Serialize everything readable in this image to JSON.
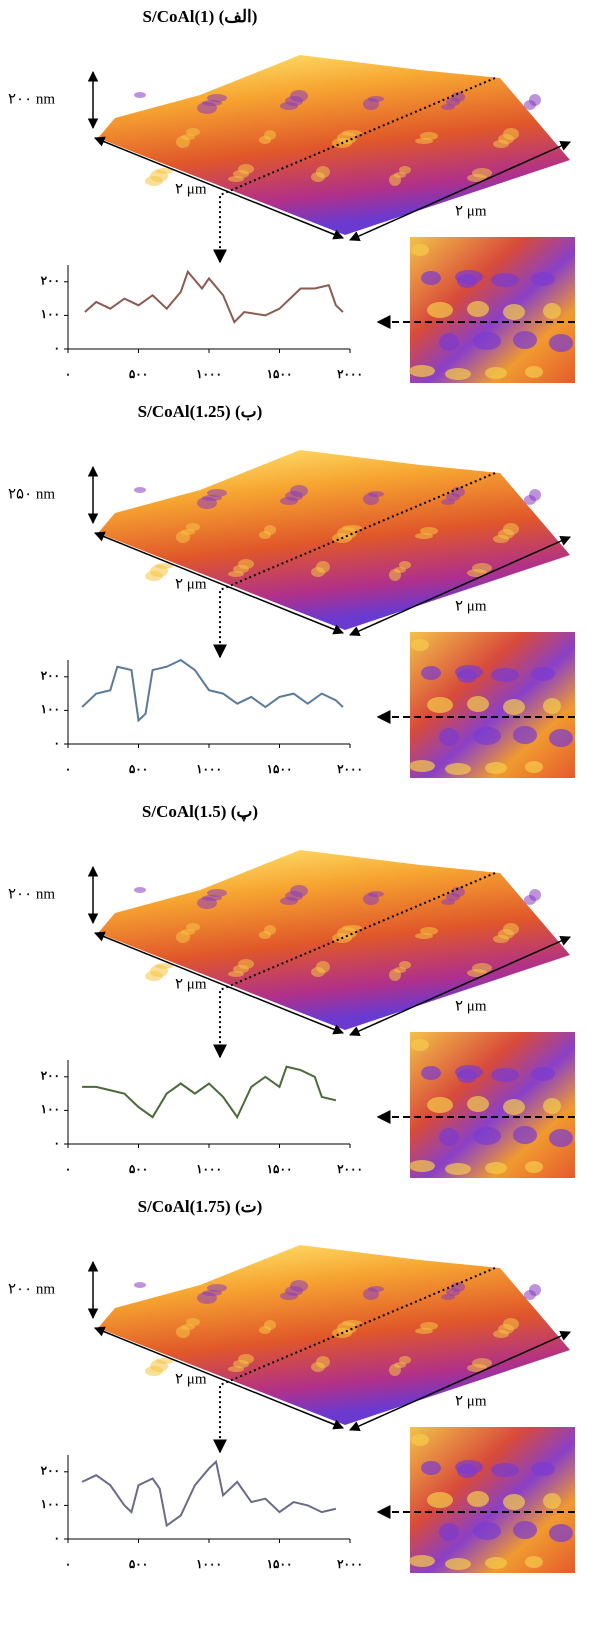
{
  "chart_data": [
    {
      "type": "line",
      "title": "S/CoAl(1) (الف)",
      "annotations": [
        "۲۰۰ nm",
        "۲ μm",
        "۲ μm"
      ],
      "color": "#8b5a50",
      "xlim": [
        0,
        2000
      ],
      "ylim": [
        0,
        250
      ],
      "xticks": [
        {
          "value": 0,
          "label": "۰"
        },
        {
          "value": 500,
          "label": "۵۰۰"
        },
        {
          "value": 1000,
          "label": "۱۰۰۰"
        },
        {
          "value": 1500,
          "label": "۱۵۰۰"
        },
        {
          "value": 2000,
          "label": "۲۰۰۰"
        }
      ],
      "yticks": [
        {
          "value": 0,
          "label": "۰"
        },
        {
          "value": 100,
          "label": "۱۰۰"
        },
        {
          "value": 200,
          "label": "۲۰۰"
        }
      ],
      "x": [
        120,
        200,
        300,
        400,
        500,
        600,
        700,
        800,
        850,
        950,
        1000,
        1100,
        1180,
        1250,
        1400,
        1500,
        1650,
        1750,
        1850,
        1900,
        1950
      ],
      "values": [
        110,
        140,
        120,
        150,
        130,
        160,
        120,
        170,
        230,
        180,
        210,
        160,
        80,
        110,
        100,
        120,
        180,
        180,
        190,
        130,
        110
      ]
    },
    {
      "type": "line",
      "title": "S/CoAl(1.25) (ب)",
      "annotations": [
        "۲۵۰ nm",
        "۲ μm",
        "۲ μm"
      ],
      "color": "#5a7a9a",
      "xlim": [
        0,
        2000
      ],
      "ylim": [
        0,
        250
      ],
      "xticks": [
        {
          "value": 0,
          "label": "۰"
        },
        {
          "value": 500,
          "label": "۵۰۰"
        },
        {
          "value": 1000,
          "label": "۱۰۰۰"
        },
        {
          "value": 1500,
          "label": "۱۵۰۰"
        },
        {
          "value": 2000,
          "label": "۲۰۰۰"
        }
      ],
      "yticks": [
        {
          "value": 0,
          "label": "۰"
        },
        {
          "value": 100,
          "label": "۱۰۰"
        },
        {
          "value": 200,
          "label": "۲۰۰"
        }
      ],
      "x": [
        100,
        200,
        300,
        350,
        450,
        500,
        550,
        600,
        700,
        800,
        900,
        1000,
        1100,
        1200,
        1300,
        1400,
        1500,
        1600,
        1700,
        1800,
        1900,
        1950
      ],
      "values": [
        110,
        150,
        160,
        230,
        220,
        70,
        90,
        220,
        230,
        250,
        220,
        160,
        150,
        120,
        140,
        110,
        140,
        150,
        120,
        150,
        130,
        110
      ]
    },
    {
      "type": "line",
      "title": "S/CoAl(1.5) (پ)",
      "annotations": [
        "۲۰۰ nm",
        "۲ μm",
        "۲ μm"
      ],
      "color": "#4a6a3a",
      "xlim": [
        0,
        2000
      ],
      "ylim": [
        0,
        250
      ],
      "xticks": [
        {
          "value": 0,
          "label": "۰"
        },
        {
          "value": 500,
          "label": "۵۰۰"
        },
        {
          "value": 1000,
          "label": "۱۰۰۰"
        },
        {
          "value": 1500,
          "label": "۱۵۰۰"
        },
        {
          "value": 2000,
          "label": "۲۰۰۰"
        }
      ],
      "yticks": [
        {
          "value": 0,
          "label": "۰"
        },
        {
          "value": 100,
          "label": "۱۰۰"
        },
        {
          "value": 200,
          "label": "۲۰۰"
        }
      ],
      "x": [
        100,
        200,
        300,
        400,
        500,
        600,
        700,
        800,
        900,
        1000,
        1100,
        1200,
        1300,
        1400,
        1500,
        1550,
        1650,
        1750,
        1800,
        1900
      ],
      "values": [
        170,
        170,
        160,
        150,
        110,
        80,
        150,
        180,
        150,
        180,
        140,
        80,
        170,
        200,
        170,
        230,
        220,
        200,
        140,
        130
      ]
    },
    {
      "type": "line",
      "title": "S/CoAl(1.75) (ت)",
      "annotations": [
        "۲۰۰ nm",
        "۲ μm",
        "۲ μm"
      ],
      "color": "#6a6a8a",
      "xlim": [
        0,
        2000
      ],
      "ylim": [
        0,
        250
      ],
      "xticks": [
        {
          "value": 0,
          "label": "۰"
        },
        {
          "value": 500,
          "label": "۵۰۰"
        },
        {
          "value": 1000,
          "label": "۱۰۰۰"
        },
        {
          "value": 1500,
          "label": "۱۵۰۰"
        },
        {
          "value": 2000,
          "label": "۲۰۰۰"
        }
      ],
      "yticks": [
        {
          "value": 0,
          "label": "۰"
        },
        {
          "value": 100,
          "label": "۱۰۰"
        },
        {
          "value": 200,
          "label": "۲۰۰"
        }
      ],
      "x": [
        100,
        200,
        300,
        400,
        450,
        500,
        600,
        650,
        700,
        800,
        900,
        1000,
        1050,
        1100,
        1200,
        1300,
        1400,
        1500,
        1600,
        1700,
        1800,
        1900
      ],
      "values": [
        170,
        190,
        160,
        100,
        80,
        160,
        180,
        150,
        40,
        70,
        160,
        210,
        230,
        130,
        170,
        110,
        120,
        80,
        110,
        100,
        80,
        90
      ]
    }
  ]
}
